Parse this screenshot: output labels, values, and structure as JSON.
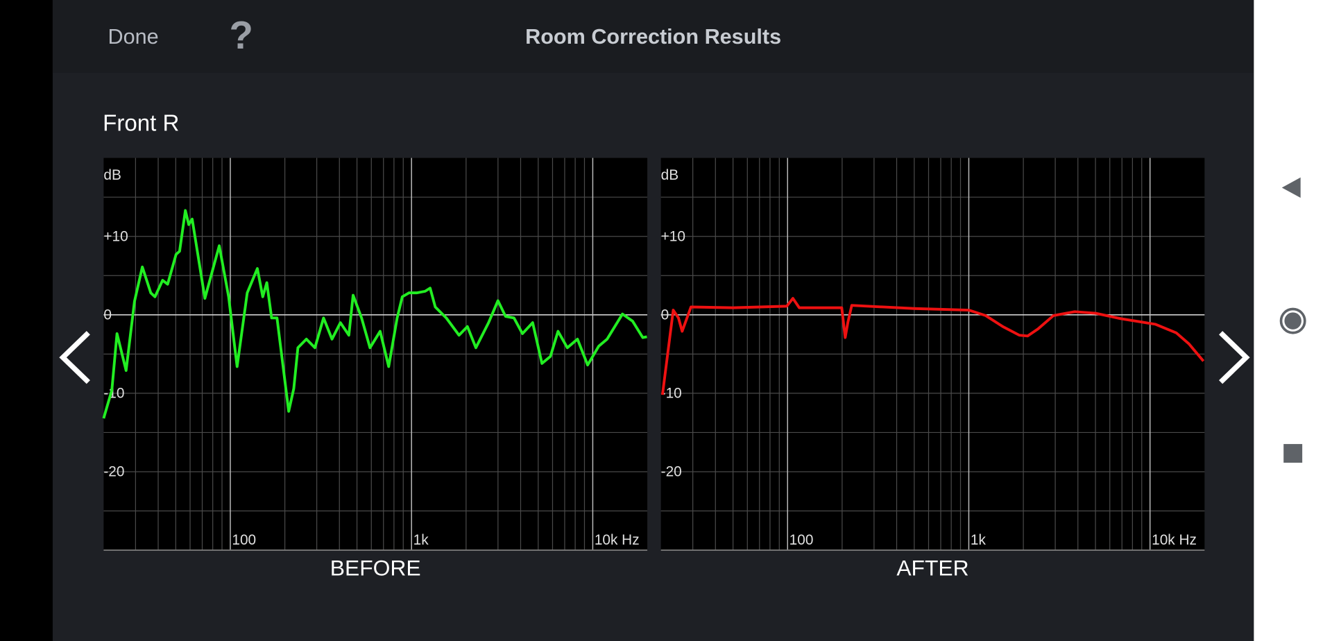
{
  "header": {
    "done": "Done",
    "help": "?",
    "title": "Room Correction Results"
  },
  "channel": "Front R",
  "chart_data": [
    {
      "type": "line",
      "title": "BEFORE",
      "ylabel": "dB",
      "xscale": "log",
      "xlim": [
        20,
        20000
      ],
      "ylim": [
        -30,
        20
      ],
      "xticks": [
        100,
        {
          "value": 1000,
          "label": "1k"
        },
        {
          "value": 10000,
          "label": "10k Hz"
        }
      ],
      "minor_xticks": [
        30,
        40,
        50,
        60,
        70,
        80,
        90,
        200,
        300,
        400,
        500,
        600,
        700,
        800,
        900,
        2000,
        3000,
        4000,
        5000,
        6000,
        7000,
        8000,
        9000
      ],
      "yticks": [
        {
          "value": 10,
          "label": "+10"
        },
        0,
        -10,
        -20
      ],
      "minor_yticks": [
        15,
        5,
        -5,
        -15,
        -25
      ],
      "grid": true,
      "x": [
        20,
        22.2,
        23.7,
        26.6,
        29.6,
        32.7,
        36.4,
        38.4,
        42.3,
        45.1,
        50.2,
        52.5,
        56.5,
        59,
        61.6,
        72.4,
        86.9,
        97.9,
        109,
        124,
        141,
        151,
        159,
        169,
        181,
        210,
        224,
        236,
        263,
        293,
        327,
        364,
        405,
        451,
        476,
        530,
        590,
        671,
        748,
        833,
        889,
        968,
        1067,
        1188,
        1267,
        1352,
        1555,
        1828,
        2034,
        2265,
        2661,
        2998,
        3302,
        3675,
        4093,
        4660,
        5244,
        5840,
        6432,
        7240,
        8236,
        9370,
        10790,
        12000,
        14580,
        16580,
        18880,
        19910
      ],
      "series": [
        {
          "color": "#22ee22",
          "values": [
            -13.2,
            -9.6,
            -2.4,
            -7.1,
            1.7,
            6.1,
            2.8,
            2.3,
            4.4,
            3.9,
            7.7,
            8.1,
            13.3,
            11.5,
            12.2,
            2.1,
            8.8,
            2.3,
            -6.6,
            2.8,
            5.9,
            2.3,
            4.1,
            -0.4,
            -0.4,
            -12.3,
            -9.4,
            -4.2,
            -3.1,
            -4.2,
            -0.4,
            -3.1,
            -1.0,
            -2.6,
            2.5,
            -0.4,
            -4.2,
            -2.1,
            -6.6,
            -0.4,
            2.3,
            2.8,
            2.8,
            3.0,
            3.4,
            1.0,
            -0.4,
            -2.6,
            -1.5,
            -4.2,
            -1.0,
            1.8,
            -0.2,
            -0.4,
            -2.4,
            -1.0,
            -6.2,
            -5.3,
            -2.1,
            -4.2,
            -3.1,
            -6.4,
            -4.0,
            -3.1,
            0.1,
            -0.8,
            -2.9,
            -2.8
          ]
        }
      ]
    },
    {
      "type": "line",
      "title": "AFTER",
      "ylabel": "dB",
      "xscale": "log",
      "xlim": [
        20,
        20000
      ],
      "ylim": [
        -30,
        20
      ],
      "xticks": [
        100,
        {
          "value": 1000,
          "label": "1k"
        },
        {
          "value": 10000,
          "label": "10k Hz"
        }
      ],
      "minor_xticks": [
        30,
        40,
        50,
        60,
        70,
        80,
        90,
        200,
        300,
        400,
        500,
        600,
        700,
        800,
        900,
        2000,
        3000,
        4000,
        5000,
        6000,
        7000,
        8000,
        9000
      ],
      "yticks": [
        {
          "value": 10,
          "label": "+10"
        },
        0,
        -10,
        -20
      ],
      "minor_yticks": [
        15,
        5,
        -5,
        -15,
        -25
      ],
      "grid": true,
      "x": [
        20.4,
        23.4,
        25,
        26.2,
        29.3,
        50,
        99,
        107,
        116,
        199,
        208,
        215,
        226,
        500,
        1000,
        1240,
        1540,
        1900,
        2110,
        2410,
        2930,
        3840,
        5010,
        6920,
        10680,
        13960,
        16390,
        19710
      ],
      "series": [
        {
          "color": "#ee1111",
          "values": [
            -10.2,
            0.6,
            -0.4,
            -2.1,
            1.0,
            0.9,
            1.1,
            2.1,
            0.9,
            0.9,
            -2.9,
            -1.0,
            1.2,
            0.8,
            0.6,
            -0.1,
            -1.5,
            -2.6,
            -2.7,
            -1.8,
            -0.1,
            0.4,
            0.2,
            -0.5,
            -1.2,
            -2.3,
            -3.7,
            -5.9
          ]
        }
      ]
    }
  ]
}
